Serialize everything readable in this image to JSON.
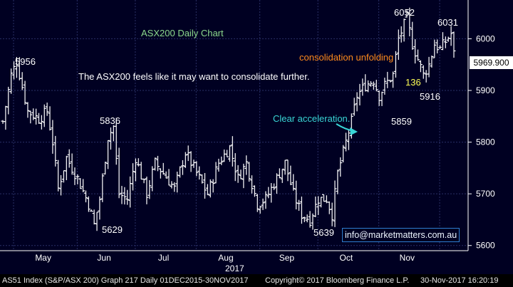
{
  "colors": {
    "background": "#000022",
    "candles": "#ffffff",
    "grid": "#2a2f66",
    "title": "#8cd98c",
    "consolidation": "#ff8a1c",
    "annotation_yellow": "#ffff55",
    "acceleration": "#39d6d6",
    "text": "#ffffff"
  },
  "chart_data": {
    "type": "candlestick",
    "title": "ASX200 Daily Chart",
    "x_tick_labels": [
      "May",
      "Jun",
      "Jul",
      "Aug",
      "Sep",
      "Oct",
      "Nov"
    ],
    "x_year_label": "2017",
    "ylim": [
      5590,
      6075
    ],
    "y_ticks": [
      5600,
      5700,
      5800,
      5900,
      6000
    ],
    "grid": true,
    "last_price_label": "5969.900",
    "price_labels": [
      "5956",
      "5836",
      "5629",
      "5639",
      "5859",
      "6052",
      "6031",
      "5916",
      "136"
    ],
    "annotations": [
      "The ASX200 feels like it may want to consolidate further.",
      "consolidation unfolding",
      "Clear acceleration."
    ],
    "watermark": "info@marketmatters.com.au",
    "anchors": [
      {
        "day": 0,
        "price": 5840
      },
      {
        "day": 3,
        "price": 5930
      },
      {
        "day": 5,
        "price": 5955
      },
      {
        "day": 9,
        "price": 5860
      },
      {
        "day": 13,
        "price": 5845
      },
      {
        "day": 16,
        "price": 5860
      },
      {
        "day": 18,
        "price": 5800
      },
      {
        "day": 20,
        "price": 5710
      },
      {
        "day": 23,
        "price": 5770
      },
      {
        "day": 27,
        "price": 5730
      },
      {
        "day": 31,
        "price": 5680
      },
      {
        "day": 33,
        "price": 5640
      },
      {
        "day": 35,
        "price": 5690
      },
      {
        "day": 38,
        "price": 5810
      },
      {
        "day": 40,
        "price": 5830
      },
      {
        "day": 42,
        "price": 5700
      },
      {
        "day": 45,
        "price": 5690
      },
      {
        "day": 48,
        "price": 5770
      },
      {
        "day": 52,
        "price": 5700
      },
      {
        "day": 55,
        "price": 5760
      },
      {
        "day": 58,
        "price": 5740
      },
      {
        "day": 62,
        "price": 5710
      },
      {
        "day": 66,
        "price": 5780
      },
      {
        "day": 70,
        "price": 5740
      },
      {
        "day": 74,
        "price": 5700
      },
      {
        "day": 78,
        "price": 5760
      },
      {
        "day": 82,
        "price": 5790
      },
      {
        "day": 85,
        "price": 5730
      },
      {
        "day": 88,
        "price": 5760
      },
      {
        "day": 92,
        "price": 5680
      },
      {
        "day": 95,
        "price": 5690
      },
      {
        "day": 98,
        "price": 5720
      },
      {
        "day": 102,
        "price": 5760
      },
      {
        "day": 105,
        "price": 5700
      },
      {
        "day": 108,
        "price": 5660
      },
      {
        "day": 111,
        "price": 5650
      },
      {
        "day": 114,
        "price": 5690
      },
      {
        "day": 117,
        "price": 5690
      },
      {
        "day": 119,
        "price": 5660
      },
      {
        "day": 121,
        "price": 5740
      },
      {
        "day": 124,
        "price": 5800
      },
      {
        "day": 126,
        "price": 5840
      },
      {
        "day": 128,
        "price": 5890
      },
      {
        "day": 131,
        "price": 5910
      },
      {
        "day": 134,
        "price": 5920
      },
      {
        "day": 136,
        "price": 5890
      },
      {
        "day": 138,
        "price": 5910
      },
      {
        "day": 141,
        "price": 5930
      },
      {
        "day": 143,
        "price": 6000
      },
      {
        "day": 146,
        "price": 6040
      },
      {
        "day": 148,
        "price": 5990
      },
      {
        "day": 150,
        "price": 5960
      },
      {
        "day": 152,
        "price": 5930
      },
      {
        "day": 154,
        "price": 5950
      },
      {
        "day": 156,
        "price": 5990
      },
      {
        "day": 158,
        "price": 5980
      },
      {
        "day": 160,
        "price": 5995
      },
      {
        "day": 162,
        "price": 6010
      },
      {
        "day": 163,
        "price": 5970
      }
    ]
  },
  "footer": {
    "left": "AS51 Index (S&P/ASX 200) Graph 217  Daily 01DEC2015-30NOV2017",
    "copyright": "Copyright© 2017 Bloomberg Finance L.P.",
    "timestamp": "30-Nov-2017 16:20:19"
  }
}
